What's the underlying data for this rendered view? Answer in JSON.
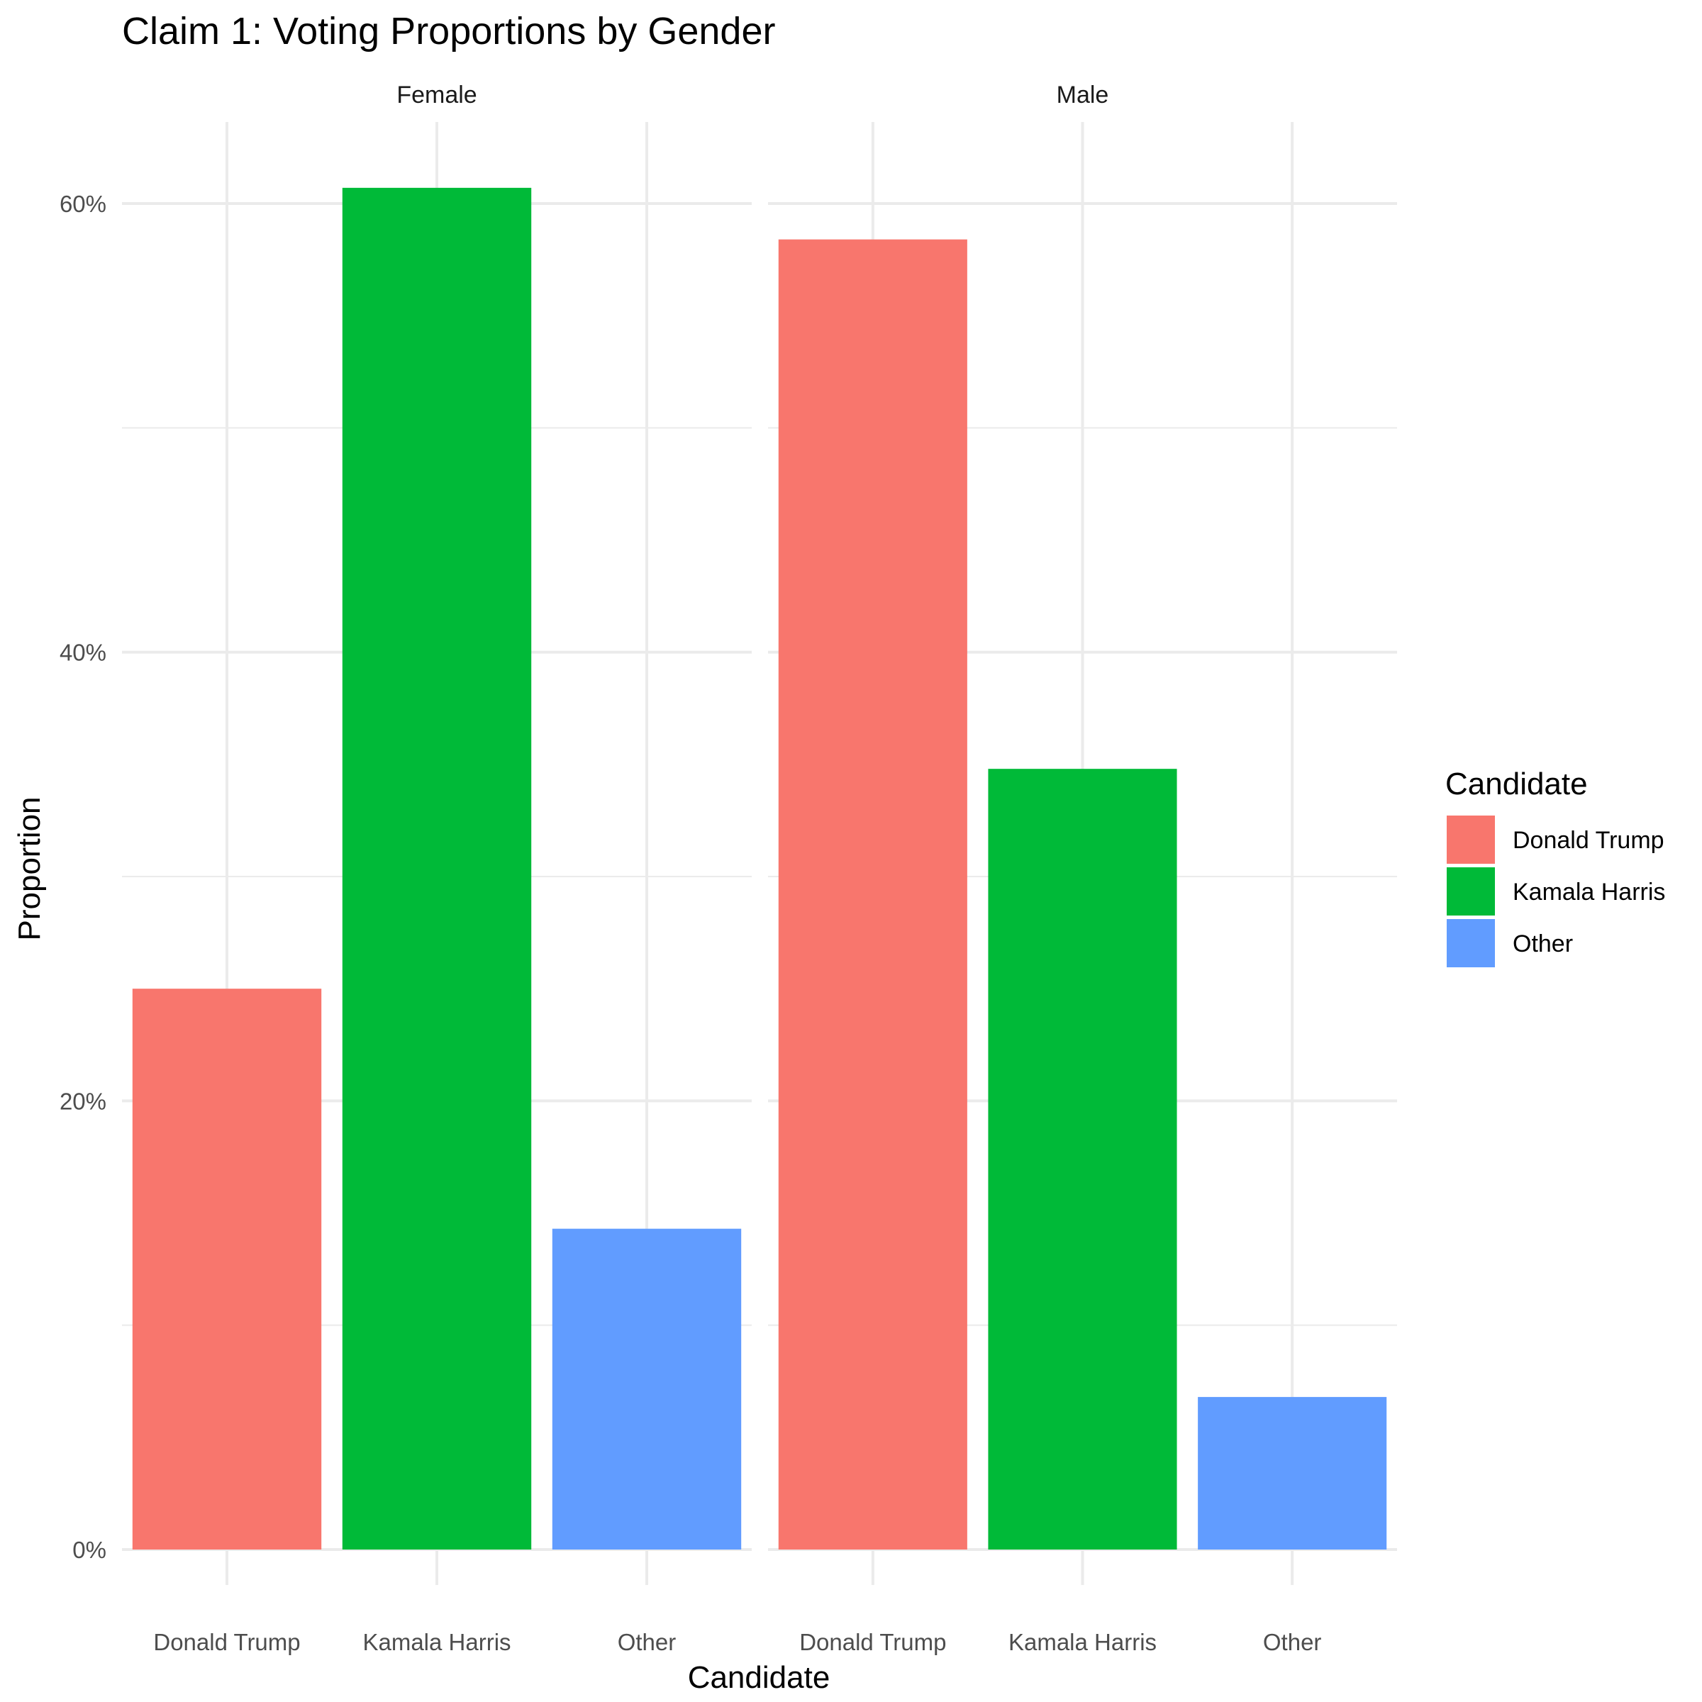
{
  "chart_data": {
    "type": "bar",
    "title": "Claim 1: Voting Proportions by Gender",
    "xlabel": "Candidate",
    "ylabel": "Proportion",
    "categories": [
      "Donald Trump",
      "Kamala Harris",
      "Other"
    ],
    "ylim": [
      0,
      0.65
    ],
    "yticks": [
      0,
      0.2,
      0.4,
      0.6
    ],
    "ytick_labels": [
      "0%",
      "20%",
      "40%",
      "60%"
    ],
    "grid": true,
    "facets": [
      {
        "name": "Female",
        "values": [
          0.25,
          0.607,
          0.143
        ]
      },
      {
        "name": "Male",
        "values": [
          0.584,
          0.348,
          0.068
        ]
      }
    ],
    "legend": {
      "title": "Candidate",
      "placement": "right",
      "entries": [
        {
          "label": "Donald Trump",
          "color": "#F8766D"
        },
        {
          "label": "Kamala Harris",
          "color": "#00BA38"
        },
        {
          "label": "Other",
          "color": "#619CFF"
        }
      ]
    }
  }
}
